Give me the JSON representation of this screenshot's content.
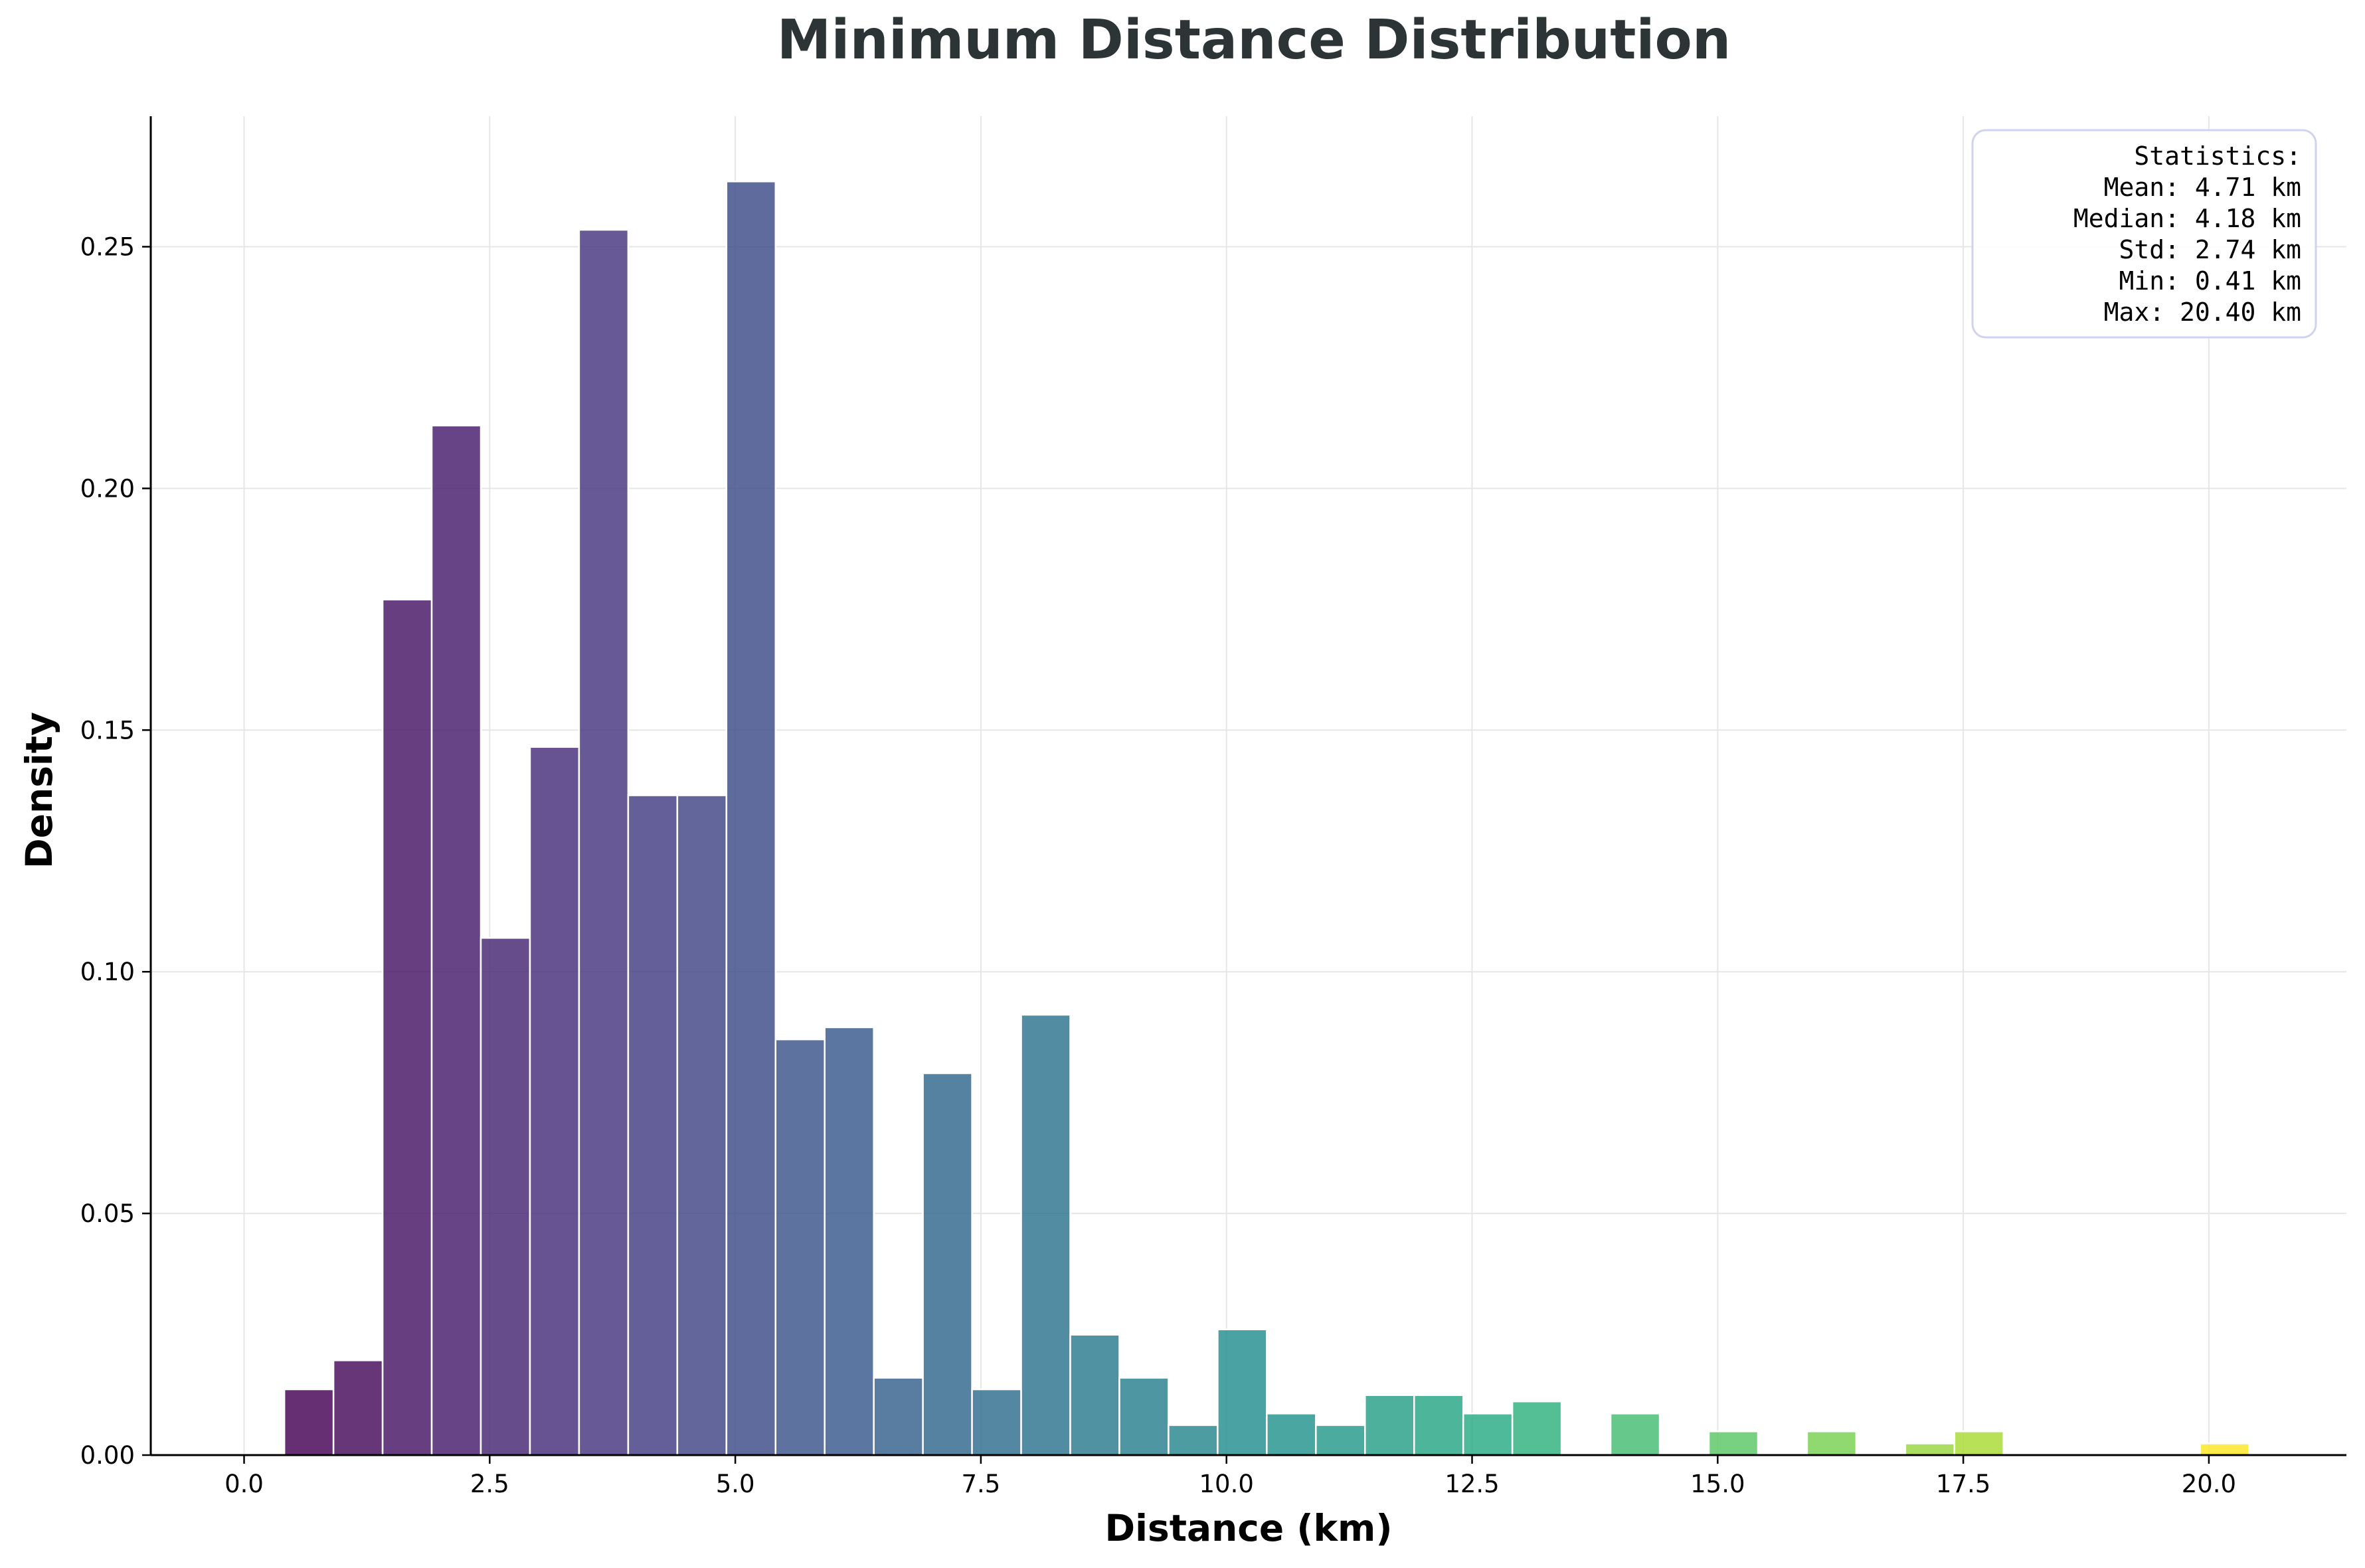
{
  "chart_data": {
    "type": "bar",
    "title": "Minimum Distance Distribution",
    "xlabel": "Distance (km)",
    "ylabel": "Density",
    "xlim": [
      -0.95,
      21.4
    ],
    "ylim": [
      0,
      0.277
    ],
    "xticks": [
      0.0,
      2.5,
      5.0,
      7.5,
      10.0,
      12.5,
      15.0,
      17.5,
      20.0
    ],
    "xtick_labels": [
      "0.0",
      "2.5",
      "5.0",
      "7.5",
      "10.0",
      "12.5",
      "15.0",
      "17.5",
      "20.0"
    ],
    "yticks": [
      0.0,
      0.05,
      0.1,
      0.15,
      0.2,
      0.25
    ],
    "ytick_labels": [
      "0.00",
      "0.05",
      "0.10",
      "0.15",
      "0.20",
      "0.25"
    ],
    "grid": true,
    "colormap": "viridis",
    "bin_edges": [
      0.41,
      0.91,
      1.41,
      1.91,
      2.41,
      2.91,
      3.41,
      3.91,
      4.41,
      4.91,
      5.41,
      5.91,
      6.41,
      6.91,
      7.41,
      7.91,
      8.41,
      8.91,
      9.41,
      9.91,
      10.41,
      10.91,
      11.41,
      11.91,
      12.41,
      12.91,
      13.41,
      13.91,
      14.41,
      14.91,
      15.41,
      15.91,
      16.41,
      16.91,
      17.41,
      17.91,
      18.41,
      18.91,
      19.41,
      19.91,
      20.41
    ],
    "values": [
      0.0136,
      0.0196,
      0.177,
      0.213,
      0.107,
      0.1465,
      0.2535,
      0.1365,
      0.1365,
      0.2635,
      0.086,
      0.0885,
      0.016,
      0.079,
      0.0136,
      0.0911,
      0.0249,
      0.016,
      0.0062,
      0.026,
      0.0086,
      0.0062,
      0.0124,
      0.0124,
      0.0086,
      0.0111,
      0,
      0.0086,
      0,
      0.0049,
      0,
      0.0049,
      0,
      0.0024,
      0.0049,
      0,
      0,
      0,
      0,
      0.0024
    ]
  },
  "statistics": {
    "header": "Statistics:",
    "lines": [
      "Mean: 4.71 km",
      "Median: 4.18 km",
      "Std: 2.74 km",
      "Min: 0.41 km",
      "Max: 20.40 km"
    ]
  },
  "colors": {
    "title": "#2c3436",
    "grid": "#e6e6e6",
    "bar_edge": "#ffffff",
    "legend_border": "#d0d3f0"
  }
}
